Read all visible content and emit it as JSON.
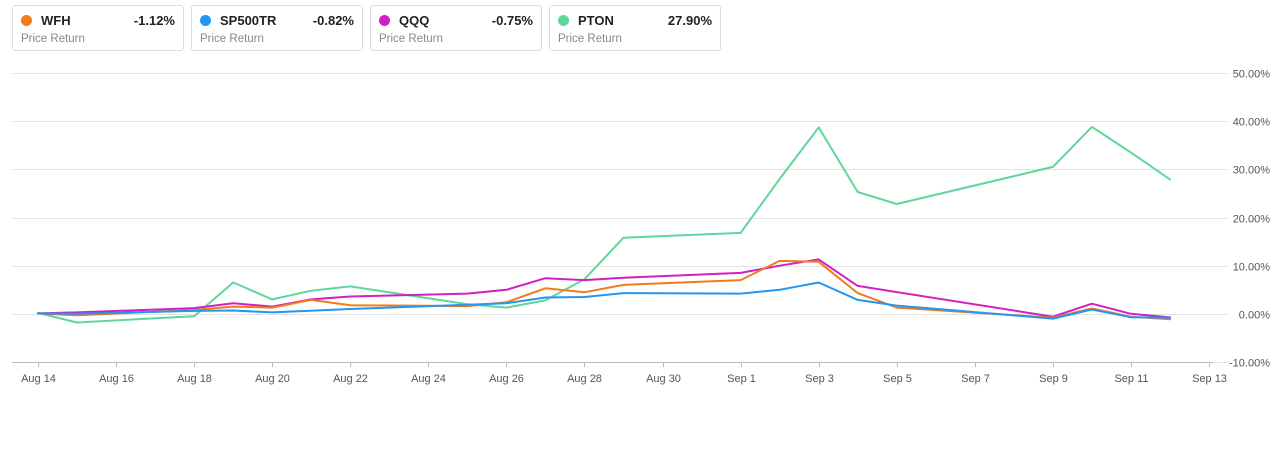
{
  "legend": [
    {
      "ticker": "WFH",
      "change": "-1.12%",
      "sub": "Price Return",
      "color": "#f07c1a"
    },
    {
      "ticker": "SP500TR",
      "change": "-0.82%",
      "sub": "Price Return",
      "color": "#2196f3"
    },
    {
      "ticker": "QQQ",
      "change": "-0.75%",
      "sub": "Price Return",
      "color": "#d21fc4"
    },
    {
      "ticker": "PTON",
      "change": "27.90%",
      "sub": "Price Return",
      "color": "#5fd69a"
    }
  ],
  "chart_data": {
    "type": "line",
    "ylim": [
      -10,
      50
    ],
    "y_ticks": [
      50,
      40,
      30,
      20,
      10,
      0,
      -10
    ],
    "y_tick_labels": [
      "50.00%",
      "40.00%",
      "30.00%",
      "20.00%",
      "10.00%",
      "0.00%",
      "-10.00%"
    ],
    "x_ticks": [
      "Aug 14",
      "Aug 16",
      "Aug 18",
      "Aug 20",
      "Aug 22",
      "Aug 24",
      "Aug 26",
      "Aug 28",
      "Aug 30",
      "Sep 1",
      "Sep 3",
      "Sep 5",
      "Sep 7",
      "Sep 9",
      "Sep 11",
      "Sep 13"
    ],
    "grid": true,
    "series": [
      {
        "name": "PTON",
        "color": "#5fd69a",
        "dates": [
          "Aug 14",
          "Aug 15",
          "Aug 18",
          "Aug 19",
          "Aug 20",
          "Aug 21",
          "Aug 22",
          "Aug 25",
          "Aug 26",
          "Aug 27",
          "Aug 28",
          "Aug 29",
          "Sep 1",
          "Sep 2",
          "Sep 3",
          "Sep 4",
          "Sep 5",
          "Sep 9",
          "Sep 10",
          "Sep 11",
          "Sep 12"
        ],
        "values": [
          0.2,
          -1.8,
          -0.5,
          6.5,
          3.0,
          4.8,
          5.7,
          2.0,
          1.3,
          2.8,
          7.2,
          15.8,
          16.8,
          28.0,
          38.7,
          25.3,
          22.8,
          30.5,
          38.8,
          33.5,
          27.9
        ]
      },
      {
        "name": "QQQ",
        "color": "#d21fc4",
        "dates": [
          "Aug 14",
          "Aug 15",
          "Aug 18",
          "Aug 19",
          "Aug 20",
          "Aug 21",
          "Aug 22",
          "Aug 25",
          "Aug 26",
          "Aug 27",
          "Aug 28",
          "Aug 29",
          "Sep 1",
          "Sep 2",
          "Sep 3",
          "Sep 4",
          "Sep 9",
          "Sep 10",
          "Sep 11",
          "Sep 12"
        ],
        "values": [
          0.1,
          0.3,
          1.2,
          2.2,
          1.5,
          3.0,
          3.6,
          4.2,
          5.0,
          7.4,
          7.0,
          7.5,
          8.5,
          10.0,
          11.3,
          5.8,
          -0.6,
          2.1,
          0.0,
          -0.75
        ]
      },
      {
        "name": "WFH",
        "color": "#f07c1a",
        "dates": [
          "Aug 14",
          "Aug 15",
          "Aug 18",
          "Aug 19",
          "Aug 20",
          "Aug 21",
          "Aug 22",
          "Aug 25",
          "Aug 26",
          "Aug 27",
          "Aug 28",
          "Aug 29",
          "Sep 1",
          "Sep 2",
          "Sep 3",
          "Sep 4",
          "Sep 5",
          "Sep 9",
          "Sep 10",
          "Sep 11",
          "Sep 12"
        ],
        "values": [
          0.1,
          -0.3,
          0.8,
          1.5,
          1.3,
          2.9,
          1.8,
          1.6,
          2.4,
          5.3,
          4.5,
          6.0,
          7.0,
          11.0,
          10.8,
          4.3,
          1.3,
          -0.8,
          1.1,
          -0.6,
          -1.12
        ]
      },
      {
        "name": "SP500TR",
        "color": "#2196f3",
        "dates": [
          "Aug 14",
          "Aug 15",
          "Aug 18",
          "Aug 19",
          "Aug 20",
          "Aug 22",
          "Aug 25",
          "Aug 26",
          "Aug 27",
          "Aug 28",
          "Aug 29",
          "Sep 1",
          "Sep 2",
          "Sep 3",
          "Sep 4",
          "Sep 5",
          "Sep 9",
          "Sep 10",
          "Sep 11",
          "Sep 12"
        ],
        "values": [
          0.1,
          0.0,
          0.6,
          0.7,
          0.3,
          1.0,
          1.9,
          2.2,
          3.4,
          3.5,
          4.3,
          4.2,
          5.0,
          6.5,
          2.9,
          1.7,
          -1.0,
          0.9,
          -0.7,
          -0.82
        ]
      }
    ]
  }
}
